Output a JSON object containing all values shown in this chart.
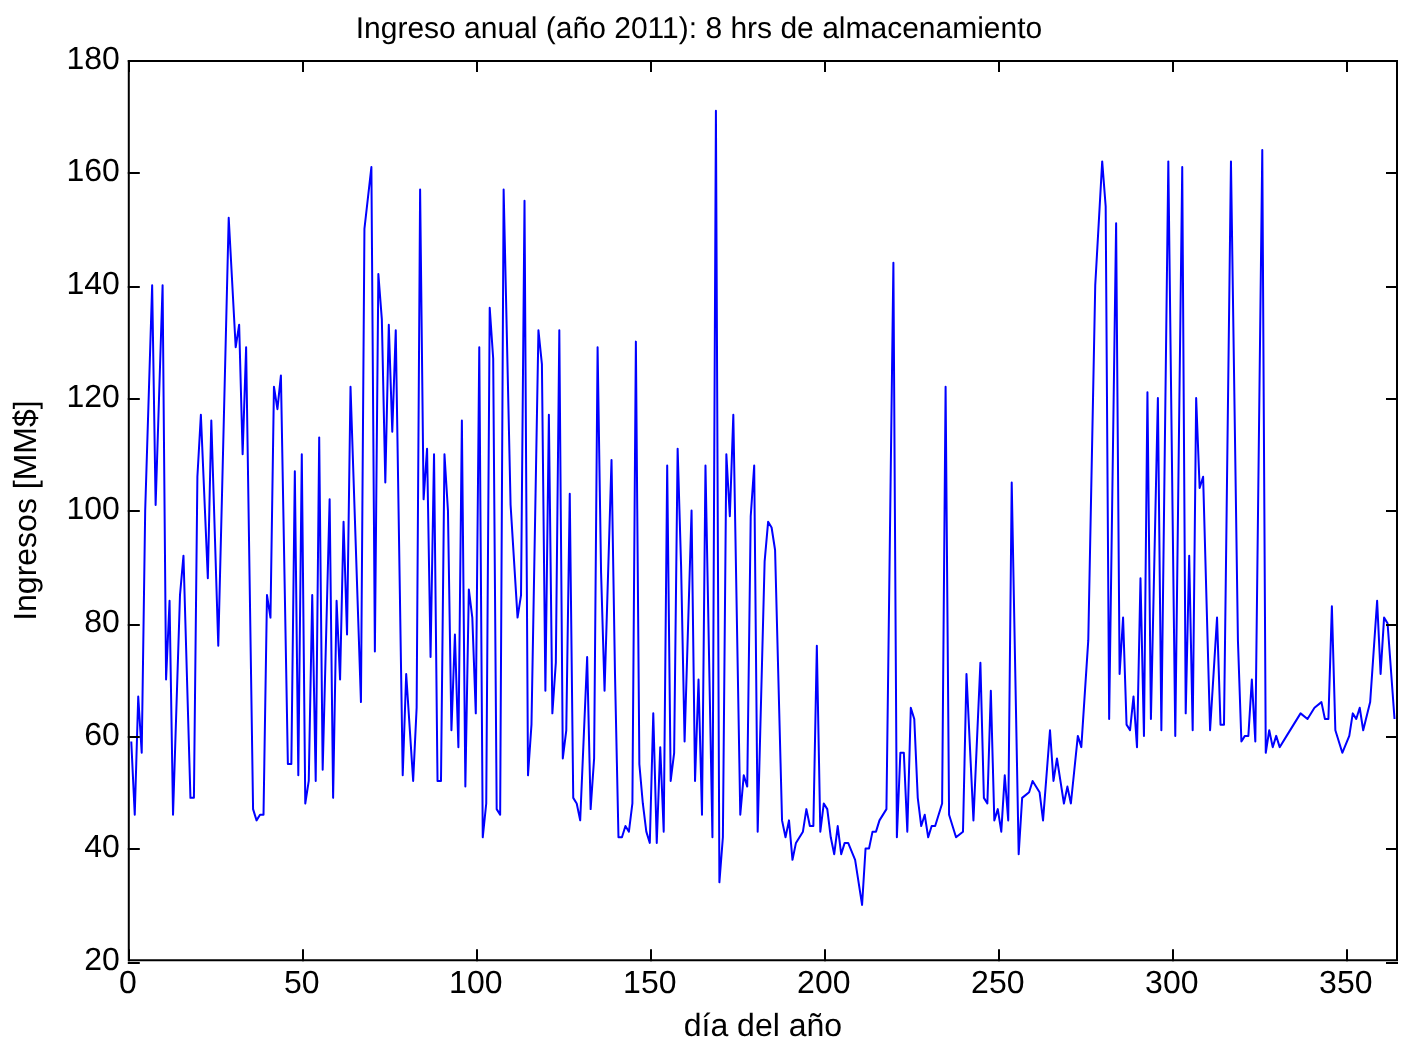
{
  "chart_data": {
    "type": "line",
    "title": "Ingreso anual (año 2011): 8 hrs de almacenamiento",
    "xlabel": "día del año",
    "ylabel": "Ingresos [MM$]",
    "xlim": [
      0,
      365
    ],
    "xticks": [
      0,
      50,
      100,
      150,
      200,
      250,
      300,
      350
    ],
    "ylim": [
      20,
      180
    ],
    "yticks": [
      20,
      40,
      60,
      80,
      100,
      120,
      140,
      160,
      180
    ],
    "grid": false,
    "legend": false,
    "marker": "none",
    "line_style": "solid",
    "series": [
      {
        "color": "#0000ff",
        "x": [
          1,
          2,
          3,
          4,
          5,
          7,
          8,
          10,
          11,
          12,
          13,
          15,
          16,
          18,
          19,
          20,
          21,
          23,
          24,
          26,
          27,
          29,
          31,
          32,
          33,
          34,
          36,
          37,
          38,
          39,
          40,
          41,
          42,
          43,
          44,
          46,
          47,
          48,
          49,
          50,
          51,
          52,
          53,
          54,
          55,
          56,
          58,
          59,
          60,
          61,
          62,
          63,
          64,
          67,
          68,
          70,
          71,
          72,
          73,
          74,
          75,
          76,
          77,
          79,
          80,
          82,
          83,
          84,
          85,
          86,
          87,
          88,
          89,
          90,
          91,
          92,
          93,
          94,
          95,
          96,
          97,
          98,
          99,
          100,
          101,
          102,
          103,
          104,
          105,
          106,
          107,
          108,
          110,
          112,
          113,
          114,
          115,
          116,
          118,
          119,
          120,
          121,
          122,
          123,
          124,
          125,
          126,
          127,
          128,
          129,
          130,
          132,
          133,
          134,
          135,
          136,
          137,
          139,
          140,
          141,
          142,
          143,
          144,
          145,
          146,
          147,
          148,
          149,
          150,
          151,
          152,
          153,
          154,
          155,
          156,
          157,
          158,
          159,
          160,
          162,
          163,
          164,
          165,
          166,
          168,
          169,
          170,
          171,
          172,
          173,
          174,
          176,
          177,
          178,
          179,
          180,
          181,
          183,
          184,
          185,
          186,
          188,
          189,
          190,
          191,
          192,
          194,
          195,
          196,
          197,
          198,
          199,
          200,
          201,
          202,
          203,
          204,
          205,
          206,
          207,
          209,
          211,
          212,
          213,
          214,
          215,
          216,
          218,
          220,
          221,
          222,
          223,
          224,
          225,
          226,
          227,
          228,
          229,
          230,
          231,
          232,
          234,
          235,
          236,
          238,
          240,
          241,
          243,
          245,
          246,
          247,
          248,
          249,
          250,
          251,
          252,
          253,
          254,
          256,
          257,
          259,
          260,
          262,
          263,
          265,
          266,
          267,
          269,
          270,
          271,
          273,
          274,
          276,
          278,
          280,
          281,
          282,
          284,
          285,
          286,
          287,
          288,
          289,
          290,
          291,
          292,
          293,
          294,
          296,
          297,
          299,
          301,
          303,
          304,
          305,
          306,
          307,
          308,
          309,
          311,
          313,
          314,
          315,
          317,
          319,
          320,
          321,
          322,
          323,
          324,
          326,
          327,
          328,
          329,
          330,
          331,
          333,
          335,
          337,
          339,
          341,
          343,
          344,
          345,
          346,
          347,
          349,
          351,
          352,
          353,
          354,
          355,
          357,
          359,
          360,
          361,
          362,
          364
        ],
        "values": [
          59,
          46,
          67,
          57,
          100,
          140,
          101,
          140,
          70,
          84,
          46,
          85,
          92,
          49,
          49,
          106,
          117,
          88,
          116,
          76,
          101,
          152,
          129,
          133,
          110,
          129,
          47,
          45,
          46,
          46,
          85,
          81,
          122,
          118,
          124,
          55,
          55,
          107,
          53,
          110,
          48,
          52,
          85,
          52,
          113,
          54,
          102,
          49,
          84,
          70,
          98,
          78,
          122,
          66,
          150,
          161,
          75,
          142,
          134,
          105,
          133,
          114,
          132,
          53,
          71,
          52,
          65,
          157,
          102,
          111,
          74,
          110,
          52,
          52,
          110,
          100,
          61,
          78,
          58,
          116,
          51,
          86,
          81,
          64,
          129,
          42,
          48,
          136,
          127,
          47,
          46,
          157,
          101,
          81,
          85,
          155,
          53,
          62,
          132,
          126,
          68,
          117,
          64,
          73,
          132,
          56,
          61,
          103,
          49,
          48,
          45,
          74,
          47,
          56,
          129,
          89,
          68,
          109,
          71,
          42,
          42,
          44,
          43,
          48,
          130,
          55,
          48,
          43,
          41,
          64,
          41,
          58,
          43,
          108,
          52,
          57,
          111,
          90,
          59,
          100,
          52,
          70,
          46,
          108,
          42,
          171,
          34,
          42,
          110,
          99,
          117,
          46,
          53,
          51,
          99,
          108,
          43,
          91,
          98,
          97,
          93,
          45,
          42,
          45,
          38,
          41,
          43,
          47,
          44,
          44,
          76,
          43,
          48,
          47,
          42,
          39,
          44,
          39,
          41,
          41,
          38,
          30,
          40,
          40,
          43,
          43,
          45,
          47,
          144,
          42,
          57,
          57,
          43,
          65,
          63,
          49,
          44,
          46,
          42,
          44,
          44,
          48,
          122,
          46,
          42,
          43,
          71,
          45,
          73,
          49,
          48,
          68,
          45,
          47,
          43,
          53,
          45,
          105,
          39,
          49,
          50,
          52,
          50,
          45,
          61,
          52,
          56,
          48,
          51,
          48,
          60,
          58,
          77,
          140,
          162,
          154,
          63,
          151,
          71,
          81,
          62,
          61,
          67,
          58,
          88,
          60,
          121,
          63,
          120,
          61,
          162,
          60,
          161,
          64,
          92,
          61,
          120,
          104,
          106,
          61,
          81,
          62,
          62,
          162,
          77,
          59,
          60,
          60,
          70,
          59,
          164,
          57,
          61,
          58,
          60,
          58,
          60,
          62,
          64,
          63,
          65,
          66,
          63,
          63,
          83,
          61,
          57,
          60,
          64,
          63,
          65,
          61,
          66,
          84,
          71,
          81,
          80,
          63
        ]
      }
    ]
  }
}
